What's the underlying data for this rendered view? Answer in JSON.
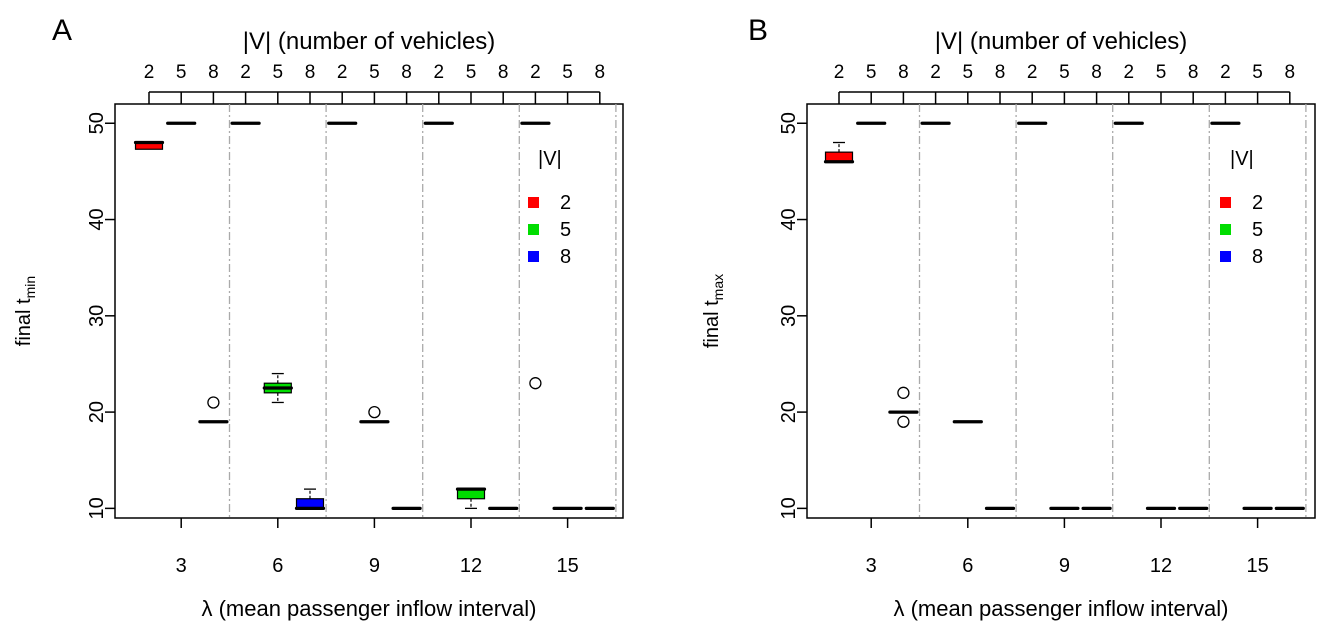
{
  "chart_data": [
    {
      "panel_label": "A",
      "type": "boxplot",
      "top_axis_label": "|V| (number of vehicles)",
      "xlabel": "λ (mean passenger inflow interval)",
      "ylabel_main": "final t",
      "ylabel_sub": "min",
      "ylim": [
        9,
        52
      ],
      "y_ticks": [
        "10",
        "20",
        "30",
        "40",
        "50"
      ],
      "x_ticks": [
        "3",
        "6",
        "9",
        "12",
        "15"
      ],
      "top_ticks": [
        "2",
        "5",
        "8",
        "2",
        "5",
        "8",
        "2",
        "5",
        "8",
        "2",
        "5",
        "8",
        "2",
        "5",
        "8"
      ],
      "legend": {
        "title": "|V|",
        "position": "top-right",
        "entries": [
          {
            "label": "2",
            "color": "#ff0000"
          },
          {
            "label": "5",
            "color": "#00dd00"
          },
          {
            "label": "8",
            "color": "#0000ff"
          }
        ]
      },
      "boxes": [
        {
          "lambda": 3,
          "v": 2,
          "q1": 47.3,
          "median": 48,
          "q3": 48,
          "lo": 47.3,
          "hi": 48,
          "outliers": []
        },
        {
          "lambda": 3,
          "v": 5,
          "q1": 50,
          "median": 50,
          "q3": 50,
          "lo": 50,
          "hi": 50,
          "outliers": []
        },
        {
          "lambda": 3,
          "v": 8,
          "q1": 19,
          "median": 19,
          "q3": 19,
          "lo": 19,
          "hi": 19,
          "outliers": [
            21
          ]
        },
        {
          "lambda": 6,
          "v": 2,
          "q1": 50,
          "median": 50,
          "q3": 50,
          "lo": 50,
          "hi": 50,
          "outliers": []
        },
        {
          "lambda": 6,
          "v": 5,
          "q1": 22,
          "median": 22.5,
          "q3": 23,
          "lo": 21,
          "hi": 24,
          "outliers": []
        },
        {
          "lambda": 6,
          "v": 8,
          "q1": 10,
          "median": 10,
          "q3": 11,
          "lo": 10,
          "hi": 12,
          "outliers": []
        },
        {
          "lambda": 9,
          "v": 2,
          "q1": 50,
          "median": 50,
          "q3": 50,
          "lo": 50,
          "hi": 50,
          "outliers": []
        },
        {
          "lambda": 9,
          "v": 5,
          "q1": 19,
          "median": 19,
          "q3": 19,
          "lo": 19,
          "hi": 19,
          "outliers": [
            20
          ]
        },
        {
          "lambda": 9,
          "v": 8,
          "q1": 10,
          "median": 10,
          "q3": 10,
          "lo": 10,
          "hi": 10,
          "outliers": []
        },
        {
          "lambda": 12,
          "v": 2,
          "q1": 50,
          "median": 50,
          "q3": 50,
          "lo": 50,
          "hi": 50,
          "outliers": []
        },
        {
          "lambda": 12,
          "v": 5,
          "q1": 11,
          "median": 12,
          "q3": 12,
          "lo": 10,
          "hi": 12,
          "outliers": []
        },
        {
          "lambda": 12,
          "v": 8,
          "q1": 10,
          "median": 10,
          "q3": 10,
          "lo": 10,
          "hi": 10,
          "outliers": []
        },
        {
          "lambda": 15,
          "v": 2,
          "q1": 50,
          "median": 50,
          "q3": 50,
          "lo": 50,
          "hi": 50,
          "outliers": [
            23
          ]
        },
        {
          "lambda": 15,
          "v": 5,
          "q1": 10,
          "median": 10,
          "q3": 10,
          "lo": 10,
          "hi": 10,
          "outliers": []
        },
        {
          "lambda": 15,
          "v": 8,
          "q1": 10,
          "median": 10,
          "q3": 10,
          "lo": 10,
          "hi": 10,
          "outliers": []
        }
      ]
    },
    {
      "panel_label": "B",
      "type": "boxplot",
      "top_axis_label": "|V| (number of vehicles)",
      "xlabel": "λ (mean passenger inflow interval)",
      "ylabel_main": "final t",
      "ylabel_sub": "max",
      "ylim": [
        9,
        52
      ],
      "y_ticks": [
        "10",
        "20",
        "30",
        "40",
        "50"
      ],
      "x_ticks": [
        "3",
        "6",
        "9",
        "12",
        "15"
      ],
      "top_ticks": [
        "2",
        "5",
        "8",
        "2",
        "5",
        "8",
        "2",
        "5",
        "8",
        "2",
        "5",
        "8",
        "2",
        "5",
        "8"
      ],
      "legend": {
        "title": "|V|",
        "position": "top-right",
        "entries": [
          {
            "label": "2",
            "color": "#ff0000"
          },
          {
            "label": "5",
            "color": "#00dd00"
          },
          {
            "label": "8",
            "color": "#0000ff"
          }
        ]
      },
      "boxes": [
        {
          "lambda": 3,
          "v": 2,
          "q1": 46,
          "median": 46,
          "q3": 47,
          "lo": 46,
          "hi": 48,
          "outliers": []
        },
        {
          "lambda": 3,
          "v": 5,
          "q1": 50,
          "median": 50,
          "q3": 50,
          "lo": 50,
          "hi": 50,
          "outliers": []
        },
        {
          "lambda": 3,
          "v": 8,
          "q1": 20,
          "median": 20,
          "q3": 20,
          "lo": 20,
          "hi": 20,
          "outliers": [
            22,
            19
          ]
        },
        {
          "lambda": 6,
          "v": 2,
          "q1": 50,
          "median": 50,
          "q3": 50,
          "lo": 50,
          "hi": 50,
          "outliers": []
        },
        {
          "lambda": 6,
          "v": 5,
          "q1": 19,
          "median": 19,
          "q3": 19,
          "lo": 19,
          "hi": 19,
          "outliers": []
        },
        {
          "lambda": 6,
          "v": 8,
          "q1": 10,
          "median": 10,
          "q3": 10,
          "lo": 10,
          "hi": 10,
          "outliers": []
        },
        {
          "lambda": 9,
          "v": 2,
          "q1": 50,
          "median": 50,
          "q3": 50,
          "lo": 50,
          "hi": 50,
          "outliers": []
        },
        {
          "lambda": 9,
          "v": 5,
          "q1": 10,
          "median": 10,
          "q3": 10,
          "lo": 10,
          "hi": 10,
          "outliers": []
        },
        {
          "lambda": 9,
          "v": 8,
          "q1": 10,
          "median": 10,
          "q3": 10,
          "lo": 10,
          "hi": 10,
          "outliers": []
        },
        {
          "lambda": 12,
          "v": 2,
          "q1": 50,
          "median": 50,
          "q3": 50,
          "lo": 50,
          "hi": 50,
          "outliers": []
        },
        {
          "lambda": 12,
          "v": 5,
          "q1": 10,
          "median": 10,
          "q3": 10,
          "lo": 10,
          "hi": 10,
          "outliers": []
        },
        {
          "lambda": 12,
          "v": 8,
          "q1": 10,
          "median": 10,
          "q3": 10,
          "lo": 10,
          "hi": 10,
          "outliers": []
        },
        {
          "lambda": 15,
          "v": 2,
          "q1": 50,
          "median": 50,
          "q3": 50,
          "lo": 50,
          "hi": 50,
          "outliers": []
        },
        {
          "lambda": 15,
          "v": 5,
          "q1": 10,
          "median": 10,
          "q3": 10,
          "lo": 10,
          "hi": 10,
          "outliers": []
        },
        {
          "lambda": 15,
          "v": 8,
          "q1": 10,
          "median": 10,
          "q3": 10,
          "lo": 10,
          "hi": 10,
          "outliers": []
        }
      ]
    }
  ]
}
